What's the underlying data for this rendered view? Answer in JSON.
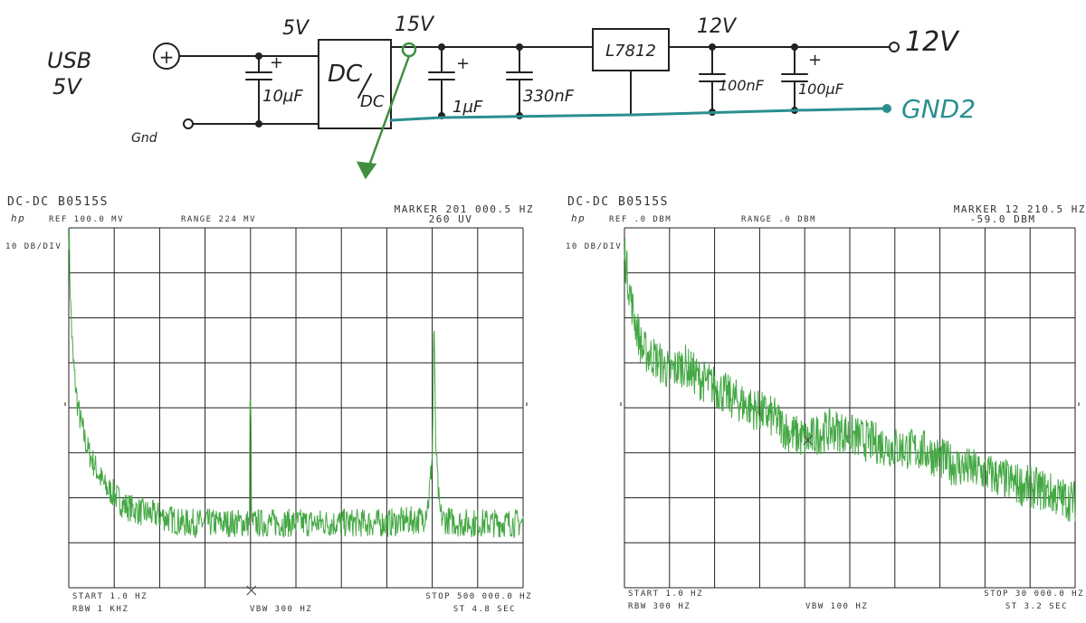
{
  "schematic": {
    "input_label_1": "USB",
    "input_label_2": "5V",
    "plus_terminal": "+",
    "gnd_terminal": "Gnd",
    "v_in": "5V",
    "v_dcdc": "15V",
    "v_reg": "12V",
    "dcdc_top": "DC",
    "dcdc_bottom": "DC",
    "regulator": "L7812",
    "c1": "10µF",
    "c2": "1µF",
    "c3": "330nF",
    "c4": "100nF",
    "c5": "100µF",
    "plus_mark": "+",
    "out_label": "12V",
    "gnd_out": "GND2",
    "colors": {
      "ink": "#222222",
      "gnd_wire": "#2a8f8f",
      "probe": "#3f8f3f"
    }
  },
  "chart_data": [
    {
      "type": "line",
      "title": "DC-DC B0515S",
      "logo": "hp",
      "ref": "REF 100.0 MV",
      "range": "RANGE 224 MV",
      "marker": "MARKER 201 000.5 HZ",
      "marker_value": "260 UV",
      "scale": "10 DB/DIV",
      "start": "START 1.0 HZ",
      "rbw": "RBW 1 KHZ",
      "vbw": "VBW 300 HZ",
      "stop": "STOP 500 000.0 HZ",
      "sweep": "ST 4.8 SEC",
      "xlim": [
        1,
        500000
      ],
      "ylim_db": [
        -100,
        0
      ],
      "grid": true,
      "trace_color": "#44a844",
      "x": [
        1,
        2500,
        5000,
        10000,
        15000,
        20000,
        30000,
        40000,
        50000,
        60000,
        80000,
        100000,
        125000,
        150000,
        175000,
        199000,
        200000,
        201000,
        202000,
        204000,
        225000,
        250000,
        275000,
        300000,
        350000,
        390000,
        396000,
        400000,
        402000,
        404000,
        408000,
        412000,
        430000,
        460000,
        500000
      ],
      "y": [
        -2,
        -25,
        -38,
        -50,
        -56,
        -61,
        -67,
        -72,
        -74,
        -77,
        -79,
        -80,
        -82,
        -82,
        -82,
        -82,
        -50,
        -81,
        -82,
        -82,
        -82,
        -82,
        -82,
        -82,
        -82,
        -81,
        -76,
        -64,
        -29,
        -62,
        -79,
        -81,
        -82,
        -82,
        -82
      ]
    },
    {
      "type": "line",
      "title": "DC-DC B0515S",
      "logo": "hp",
      "ref": "REF .0 DBM",
      "range": "RANGE .0 DBM",
      "marker": "MARKER 12 210.5 HZ",
      "marker_value": "-59.0 DBM",
      "scale": "10 DB/DIV",
      "start": "START 1.0 HZ",
      "rbw": "RBW 300 HZ",
      "vbw": "VBW 100 HZ",
      "stop": "STOP 30 000.0 HZ",
      "sweep": "ST 3.2 SEC",
      "xlim": [
        1,
        30000
      ],
      "ylim_db": [
        -100,
        0
      ],
      "grid": true,
      "trace_color": "#44a844",
      "x": [
        1,
        300,
        600,
        1200,
        2000,
        3000,
        4000,
        5000,
        6000,
        7000,
        8000,
        9000,
        10000,
        11000,
        12210,
        13000,
        14000,
        16000,
        18000,
        20000,
        22000,
        24000,
        26000,
        28000,
        29000,
        30000
      ],
      "y": [
        -7,
        -16,
        -24,
        -34,
        -36,
        -40,
        -38,
        -42,
        -44,
        -47,
        -49,
        -51,
        -53,
        -57,
        -59,
        -57,
        -56,
        -59,
        -61,
        -62,
        -66,
        -68,
        -71,
        -73,
        -75,
        -76
      ]
    }
  ]
}
